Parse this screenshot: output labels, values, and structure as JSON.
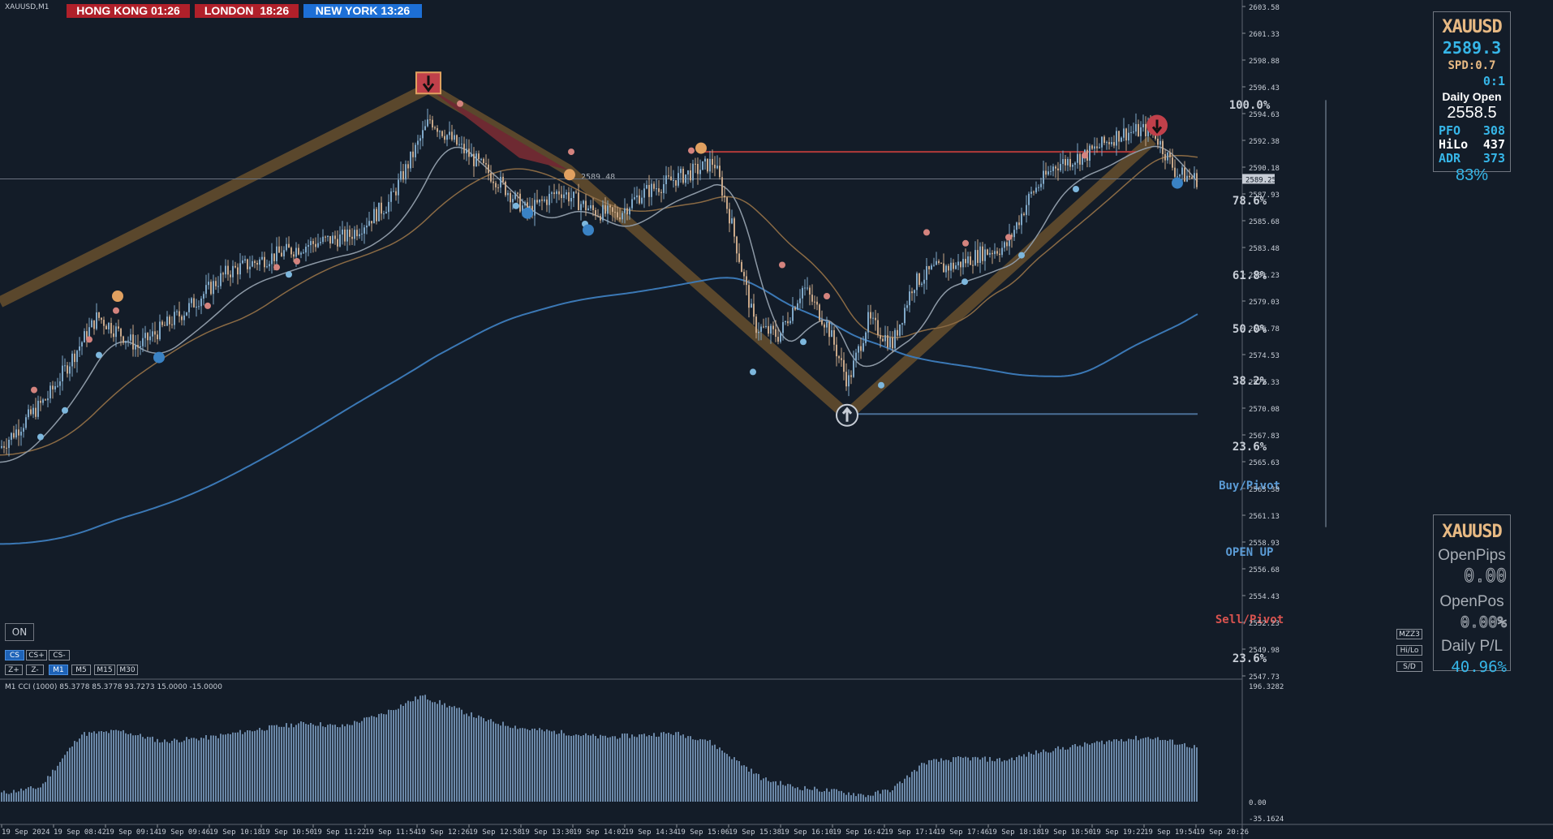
{
  "symbol_label": "XAUUSD,M1",
  "clocks": [
    {
      "label": "HONG KONG 01:26",
      "bg": "#b0202a"
    },
    {
      "label": "LONDON  18:26",
      "bg": "#b0202a"
    },
    {
      "label": "NEW YORK 13:26",
      "bg": "#1d6fd6"
    }
  ],
  "price_axis": [
    "2603.58",
    "2601.33",
    "2598.88",
    "2596.43",
    "2594.63",
    "2592.38",
    "2590.18",
    "2587.93",
    "2585.68",
    "2583.48",
    "2581.23",
    "2579.03",
    "2576.78",
    "2574.53",
    "2572.33",
    "2570.08",
    "2567.83",
    "2565.63",
    "2563.38",
    "2561.13",
    "2558.93",
    "2556.68",
    "2554.43",
    "2552.23",
    "2549.98",
    "2547.73"
  ],
  "current_price": "2589.25",
  "fib_levels": [
    {
      "label": "100.0%",
      "color": "#c7cdd6"
    },
    {
      "label": "78.6%",
      "color": "#c7cdd6"
    },
    {
      "label": "61.8%",
      "color": "#c7cdd6"
    },
    {
      "label": "50.0%",
      "color": "#c7cdd6"
    },
    {
      "label": "38.2%",
      "color": "#c7cdd6"
    },
    {
      "label": "23.6%",
      "color": "#c7cdd6"
    },
    {
      "label": "Buy/Pivot",
      "color": "#5b9bd5"
    },
    {
      "label": "OPEN UP",
      "color": "#5b9bd5"
    },
    {
      "label": "Sell/Pivot",
      "color": "#d9534f"
    },
    {
      "label": "23.6%",
      "color": "#c7cdd6"
    }
  ],
  "zigzag_label": "2589.48",
  "info_panel": {
    "symbol": "XAUUSD",
    "price": "2589.3",
    "spread": "SPD:0.7",
    "ratio": "0:1",
    "daily_open_label": "Daily Open",
    "daily_open_value": "2558.5",
    "pfo_label": "PFO",
    "pfo_value": "308",
    "hilo_label": "HiLo",
    "hilo_value": "437",
    "adr_label": "ADR",
    "adr_value": "373",
    "adr_percent": "83%"
  },
  "pos_panel": {
    "symbol": "XAUUSD",
    "open_pips_label": "OpenPips",
    "open_pips_value": "0.00",
    "open_pos_label": "OpenPos",
    "open_pos_value": "0.00%",
    "daily_pl_label": "Daily P/L",
    "daily_pl_value": "40.96%"
  },
  "right_buttons": [
    "MZZ3",
    "Hi/Lo",
    "S/D"
  ],
  "on_button": "ON",
  "cs_buttons": [
    "CS",
    "CS+",
    "CS-"
  ],
  "tf_buttons": [
    "Z+",
    "Z-",
    "M1",
    "M5",
    "M15",
    "M30"
  ],
  "indicator_label": "M1 CCI (1000) 85.3778 85.3778 93.7273 15.0000 -15.0000",
  "indicator_axis": [
    "196.3282",
    "0.00",
    "-35.1624"
  ],
  "time_axis": [
    "19 Sep 2024",
    "19 Sep 08:42",
    "19 Sep 09:14",
    "19 Sep 09:46",
    "19 Sep 10:18",
    "19 Sep 10:50",
    "19 Sep 11:22",
    "19 Sep 11:54",
    "19 Sep 12:26",
    "19 Sep 12:58",
    "19 Sep 13:30",
    "19 Sep 14:02",
    "19 Sep 14:34",
    "19 Sep 15:06",
    "19 Sep 15:38",
    "19 Sep 16:10",
    "19 Sep 16:42",
    "19 Sep 17:14",
    "19 Sep 17:46",
    "19 Sep 18:18",
    "19 Sep 18:50",
    "19 Sep 19:22",
    "19 Sep 19:54",
    "19 Sep 20:26"
  ],
  "colors": {
    "background": "#131c28",
    "zigzag": "#5e4a2c",
    "bull_candle": "#7fa8c9",
    "bear_candle": "#c9a889",
    "ma_slow": "#3b78b5",
    "ma_mid": "#8a6a44",
    "ma_fast": "#8d99a6",
    "cci": "#6b88a8",
    "resistance": "#b23a3a",
    "support": "#4a6f96",
    "accent_text": "#36b6e8",
    "gold_text": "#e7b983"
  }
}
